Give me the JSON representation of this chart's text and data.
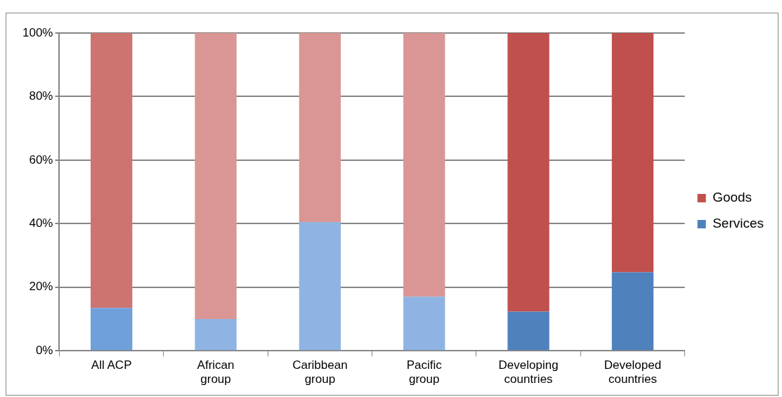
{
  "chart_data": {
    "type": "bar",
    "stacked": true,
    "categories": [
      "All ACP",
      "African group",
      "Caribbean group",
      "Pacific group",
      "Developing countries",
      "Developed countries"
    ],
    "series": [
      {
        "name": "Services",
        "color": "#4f81bd",
        "colors": [
          "#6fa0da",
          "#8fb4e3",
          "#8fb4e3",
          "#8fb4e3",
          "#4f81bd",
          "#4f81bd"
        ],
        "values": [
          13.5,
          10,
          40.5,
          17,
          12.3,
          24.7
        ]
      },
      {
        "name": "Goods",
        "color": "#c0504d",
        "colors": [
          "#cd7470",
          "#da9694",
          "#da9694",
          "#da9694",
          "#c0504d",
          "#c0504d"
        ],
        "values": [
          86.5,
          90,
          59.5,
          83,
          87.7,
          75.3
        ]
      }
    ],
    "ylim": [
      0,
      100
    ],
    "yticks": [
      {
        "value": 0,
        "label": "0%"
      },
      {
        "value": 20,
        "label": "20%"
      },
      {
        "value": 40,
        "label": "40%"
      },
      {
        "value": 60,
        "label": "60%"
      },
      {
        "value": 80,
        "label": "80%"
      },
      {
        "value": 100,
        "label": "100%"
      }
    ],
    "grid": "y",
    "legend": "right"
  }
}
